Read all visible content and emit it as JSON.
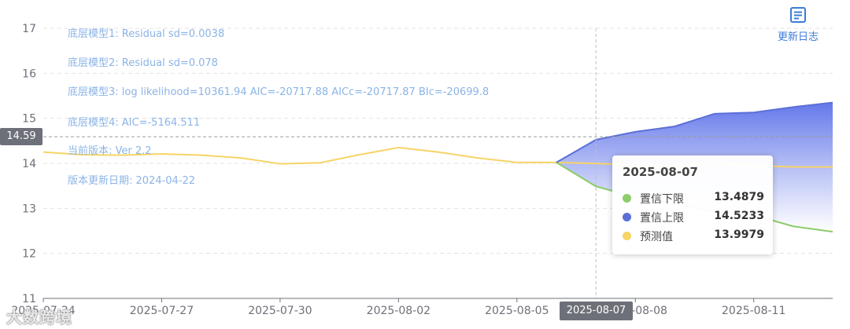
{
  "chart_data": {
    "type": "line",
    "x": [
      "2025-07-24",
      "2025-07-25",
      "2025-07-26",
      "2025-07-27",
      "2025-07-28",
      "2025-07-29",
      "2025-07-30",
      "2025-07-31",
      "2025-08-01",
      "2025-08-02",
      "2025-08-03",
      "2025-08-04",
      "2025-08-05",
      "2025-08-06",
      "2025-08-07",
      "2025-08-08",
      "2025-08-09",
      "2025-08-10",
      "2025-08-11",
      "2025-08-12",
      "2025-08-13"
    ],
    "x_tick_labels": [
      "2025-07-24",
      "2025-07-27",
      "2025-07-30",
      "2025-08-02",
      "2025-08-05",
      "2025-08-08",
      "2025-08-11"
    ],
    "ylim": [
      11,
      17
    ],
    "y_ticks": [
      11,
      12,
      13,
      14,
      15,
      16,
      17
    ],
    "grid": "horizontal dashed",
    "series": [
      {
        "name": "预测值",
        "color": "#f6d466",
        "values": [
          14.25,
          14.19,
          14.18,
          14.21,
          14.18,
          14.12,
          13.99,
          14.01,
          14.19,
          14.35,
          14.25,
          14.12,
          14.02,
          14.02,
          13.9979,
          13.96,
          13.93,
          14.02,
          13.95,
          13.92,
          13.92
        ]
      },
      {
        "name": "置信下限",
        "color": "#8ccc6a",
        "values": [
          null,
          null,
          null,
          null,
          null,
          null,
          null,
          null,
          null,
          null,
          null,
          null,
          null,
          14.02,
          13.4879,
          13.25,
          13.1,
          12.92,
          12.85,
          12.6,
          12.48
        ]
      },
      {
        "name": "置信上限",
        "color": "#5b6fd6",
        "values": [
          null,
          null,
          null,
          null,
          null,
          null,
          null,
          null,
          null,
          null,
          null,
          null,
          null,
          14.02,
          14.5233,
          14.7,
          14.82,
          15.1,
          15.13,
          15.25,
          15.35
        ]
      }
    ],
    "band": {
      "lower": "置信下限",
      "upper": "置信上限",
      "top_color": "#6478ea",
      "bottom_color": "#ffffff"
    },
    "annotations": [
      "底层模型1: Residual sd=0.0038",
      "底层模型2: Residual sd=0.078",
      "底层模型3: log likelihood=10361.94 AIC=-20717.88 AICc=-20717.87 BIc=-20699.8",
      "底层模型4: AIC=-5164.511",
      "当前版本: Ver 2.2",
      "版本更新日期: 2024-04-22"
    ],
    "crosshair": {
      "x": "2025-08-07",
      "y": 14.59,
      "y_label": "14.59",
      "x_label": "2025-08-07"
    },
    "tooltip": {
      "date": "2025-08-07",
      "rows": [
        {
          "name": "置信下限",
          "value": "13.4879",
          "color": "#8ccc6a"
        },
        {
          "name": "置信上限",
          "value": "14.5233",
          "color": "#5b6fd6"
        },
        {
          "name": "预测值",
          "value": "13.9979",
          "color": "#f6d466"
        }
      ]
    }
  },
  "toolbar": {
    "changelog_label": "更新日志",
    "changelog_icon": "document-icon",
    "accent": "#3d7bd9"
  },
  "watermark": "大数跨境"
}
